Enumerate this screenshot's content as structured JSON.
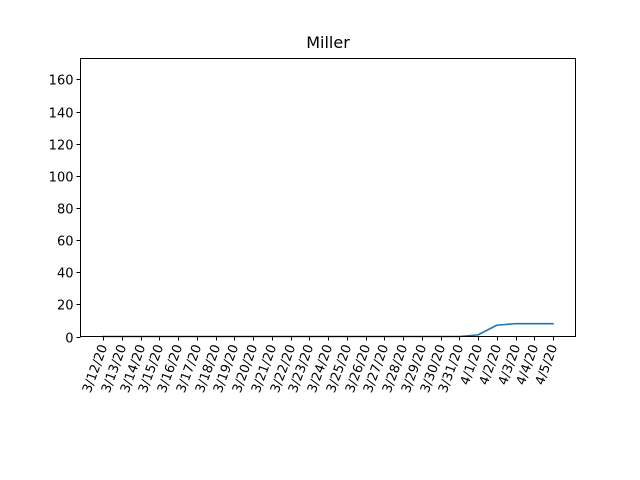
{
  "chart_data": {
    "type": "line",
    "title": "Miller",
    "xlabel": "",
    "ylabel": "",
    "categories": [
      "3/12/20",
      "3/13/20",
      "3/14/20",
      "3/15/20",
      "3/16/20",
      "3/17/20",
      "3/18/20",
      "3/19/20",
      "3/20/20",
      "3/21/20",
      "3/22/20",
      "3/23/20",
      "3/24/20",
      "3/25/20",
      "3/26/20",
      "3/27/20",
      "3/28/20",
      "3/29/20",
      "3/30/20",
      "3/31/20",
      "4/1/20",
      "4/2/20",
      "4/3/20",
      "4/4/20",
      "4/5/20"
    ],
    "series": [
      {
        "values": [
          0,
          0,
          0,
          0,
          0,
          0,
          0,
          0,
          0,
          0,
          0,
          0,
          0,
          0,
          0,
          0,
          0,
          0,
          0,
          0,
          1,
          7,
          8,
          8,
          8
        ]
      }
    ],
    "ylim": [
      0,
      173
    ],
    "yticks": [
      0,
      20,
      40,
      60,
      80,
      100,
      120,
      140,
      160
    ],
    "grid": false,
    "legend": "none",
    "line_color": "#1f77b4"
  }
}
